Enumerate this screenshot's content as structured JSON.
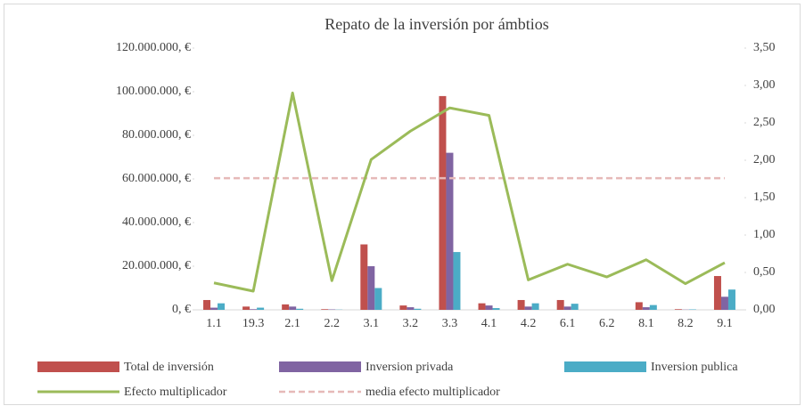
{
  "chart_data": {
    "type": "bar_line",
    "title": "Repato de la inversión por ámbtios",
    "categories": [
      "1.1",
      "19.3",
      "2.1",
      "2.2",
      "3.1",
      "3.2",
      "3.3",
      "4.1",
      "4.2",
      "6.1",
      "6.2",
      "8.1",
      "8.2",
      "9.1"
    ],
    "series": [
      {
        "name": "Total de inversión",
        "color": "#c0504d",
        "type": "bar",
        "values": [
          4500000,
          1500000,
          2500000,
          300000,
          30000000,
          2000000,
          98000000,
          3000000,
          4500000,
          4500000,
          0,
          3500000,
          300000,
          15500000
        ]
      },
      {
        "name": "Inversion privada",
        "color": "#8064a2",
        "type": "bar",
        "values": [
          1000000,
          300000,
          1500000,
          200000,
          20000000,
          1200000,
          72000000,
          2000000,
          1500000,
          1500000,
          0,
          1200000,
          100000,
          6000000
        ]
      },
      {
        "name": "Inversion publica",
        "color": "#4bacc6",
        "type": "bar",
        "values": [
          3000000,
          1000000,
          500000,
          100000,
          10000000,
          500000,
          26500000,
          800000,
          3000000,
          2800000,
          0,
          2200000,
          200000,
          9300000
        ]
      },
      {
        "name": "Efecto multiplicador",
        "color": "#9bbb59",
        "type": "line",
        "axis": "y2",
        "values": [
          0.36,
          0.25,
          2.9,
          0.39,
          2.01,
          2.39,
          2.7,
          2.6,
          0.4,
          0.61,
          0.44,
          0.67,
          0.35,
          0.63
        ]
      }
    ],
    "mean_line": {
      "name": "media efecto multiplicador",
      "color": "#e6b9b8",
      "axis": "y2",
      "value": 1.76
    },
    "ylim": [
      0,
      120000000
    ],
    "yticks": [
      {
        "value": 0,
        "label": "0, €"
      },
      {
        "value": 20000000,
        "label": "20.000.000, €"
      },
      {
        "value": 40000000,
        "label": "40.000.000, €"
      },
      {
        "value": 60000000,
        "label": "60.000.000, €"
      },
      {
        "value": 80000000,
        "label": "80.000.000, €"
      },
      {
        "value": 100000000,
        "label": "100.000.000, €"
      },
      {
        "value": 120000000,
        "label": "120.000.000, €"
      }
    ],
    "y2lim": [
      0,
      3.5
    ],
    "y2ticks": [
      {
        "value": 0,
        "label": "0,00"
      },
      {
        "value": 0.5,
        "label": "0,50"
      },
      {
        "value": 1,
        "label": "1,00"
      },
      {
        "value": 1.5,
        "label": "1,50"
      },
      {
        "value": 2,
        "label": "2,00"
      },
      {
        "value": 2.5,
        "label": "2,50"
      },
      {
        "value": 3,
        "label": "3,00"
      },
      {
        "value": 3.5,
        "label": "3,50"
      }
    ],
    "grid": false
  }
}
